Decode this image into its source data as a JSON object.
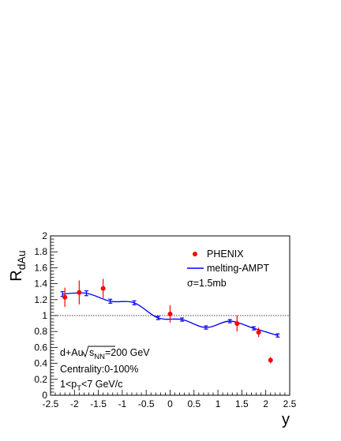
{
  "chart_data": {
    "type": "scatter",
    "xlabel": "y",
    "ylabel_main": "R",
    "ylabel_sub": "dAu",
    "xlim": [
      -2.5,
      2.5
    ],
    "ylim": [
      0,
      2
    ],
    "x_ticks": [
      "-2.5",
      "-2",
      "-1.5",
      "-1",
      "-0.5",
      "0",
      "0.5",
      "1",
      "1.5",
      "2",
      "2.5"
    ],
    "x_tick_values": [
      -2.5,
      -2,
      -1.5,
      -1,
      -0.5,
      0,
      0.5,
      1,
      1.5,
      2,
      2.5
    ],
    "y_ticks": [
      "0",
      "0.2",
      "0.4",
      "0.6",
      "0.8",
      "1",
      "1.2",
      "1.4",
      "1.6",
      "1.8",
      "2"
    ],
    "y_tick_values": [
      0,
      0.2,
      0.4,
      0.6,
      0.8,
      1.0,
      1.2,
      1.4,
      1.6,
      1.8,
      2.0
    ],
    "reference_line": 1.0,
    "series": [
      {
        "name": "PHENIX",
        "kind": "points",
        "color": "#ff0000",
        "points": [
          {
            "x": -2.2,
            "y": 1.23,
            "err": 0.12
          },
          {
            "x": -1.9,
            "y": 1.29,
            "err": 0.15
          },
          {
            "x": -1.4,
            "y": 1.34,
            "err": 0.12
          },
          {
            "x": 0.0,
            "y": 1.02,
            "err": 0.11
          },
          {
            "x": 1.4,
            "y": 0.9,
            "err": 0.1
          },
          {
            "x": 1.85,
            "y": 0.79,
            "err": 0.06
          },
          {
            "x": 2.1,
            "y": 0.44,
            "err": 0.04
          }
        ]
      },
      {
        "name": "melting-AMPT",
        "kind": "line",
        "color": "#0000ff",
        "points": [
          {
            "x": -2.25,
            "y": 1.27,
            "err": 0.03
          },
          {
            "x": -1.75,
            "y": 1.28,
            "err": 0.03
          },
          {
            "x": -1.25,
            "y": 1.18,
            "err": 0.025
          },
          {
            "x": -0.75,
            "y": 1.16,
            "err": 0.025
          },
          {
            "x": -0.25,
            "y": 0.97,
            "err": 0.02
          },
          {
            "x": 0.25,
            "y": 0.95,
            "err": 0.02
          },
          {
            "x": 0.75,
            "y": 0.85,
            "err": 0.02
          },
          {
            "x": 1.25,
            "y": 0.93,
            "err": 0.02
          },
          {
            "x": 1.75,
            "y": 0.84,
            "err": 0.02
          },
          {
            "x": 2.25,
            "y": 0.75,
            "err": 0.02
          }
        ]
      }
    ],
    "legend": {
      "placement": "top-right",
      "entries": [
        "PHENIX",
        "melting-AMPT"
      ],
      "extra": "σ=1.5mb"
    },
    "annotations": {
      "line1_prefix": "d+Au",
      "line1_s": "s",
      "line1_sub": "NN",
      "line1_suffix": "=200 GeV",
      "line2": "Centrality:0-100%",
      "line3_prefix": "1<p",
      "line3_sub": "T",
      "line3_suffix": "<7 GeV/c"
    }
  }
}
